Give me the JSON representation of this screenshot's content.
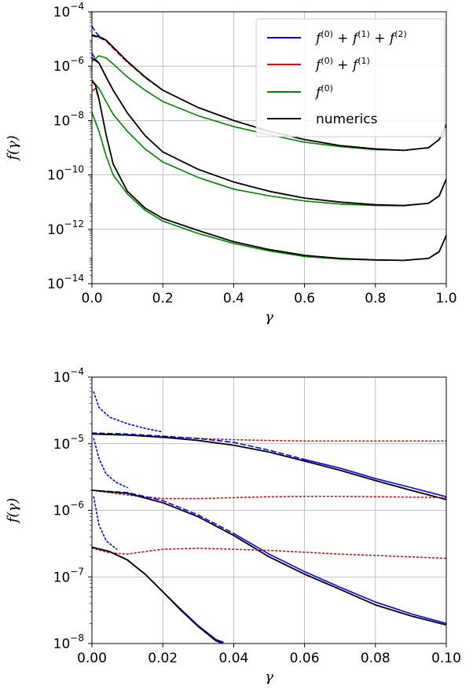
{
  "chart_data": [
    {
      "type": "line",
      "xscale": "linear",
      "yscale": "log",
      "xlim": [
        0.0,
        1.0
      ],
      "ylim": [
        1e-14,
        0.0001
      ],
      "xlabel": "γ",
      "ylabel": "f(γ)",
      "xticks": [
        "0.0",
        "0.2",
        "0.4",
        "0.6",
        "0.8",
        "1.0"
      ],
      "yticks": [
        {
          "base": "10",
          "exp": "−14",
          "value": 1e-14
        },
        {
          "base": "10",
          "exp": "−12",
          "value": 1e-12
        },
        {
          "base": "10",
          "exp": "−10",
          "value": 1e-10
        },
        {
          "base": "10",
          "exp": "−8",
          "value": 1e-08
        },
        {
          "base": "10",
          "exp": "−6",
          "value": 1e-06
        },
        {
          "base": "10",
          "exp": "−4",
          "value": 0.0001
        }
      ],
      "grid": true,
      "legend_position": "top-right",
      "legend": [
        {
          "label": "f^(0) + f^(1) + f^(2)",
          "color": "#0000ff"
        },
        {
          "label": "f^(0) + f^(1)",
          "color": "#ff0000"
        },
        {
          "label": "f^(0)",
          "color": "#008000"
        },
        {
          "label": "numerics",
          "color": "#000000"
        }
      ],
      "groups": [
        {
          "numerics": {
            "x": [
              0.0,
              0.02,
              0.04,
              0.06,
              0.1,
              0.15,
              0.2,
              0.3,
              0.4,
              0.5,
              0.6,
              0.7,
              0.8,
              0.88,
              0.95,
              0.98,
              1.0
            ],
            "y": [
              1.4e-05,
              1.2e-05,
              9e-06,
              5e-06,
              1.5e-06,
              4e-07,
              1.3e-07,
              3e-08,
              1e-08,
              4e-09,
              2e-09,
              1.2e-09,
              9e-10,
              8e-10,
              1e-09,
              2e-09,
              7e-09
            ]
          },
          "f0": {
            "x": [
              0.0,
              0.02,
              0.04,
              0.06,
              0.1,
              0.15,
              0.2,
              0.3,
              0.4,
              0.5,
              0.6,
              0.7,
              0.8,
              0.88,
              0.95,
              0.98,
              1.0
            ],
            "y": [
              1.5e-06,
              2.4e-06,
              2e-06,
              1.2e-06,
              4e-07,
              1.3e-07,
              5e-08,
              1.5e-08,
              6e-09,
              3e-09,
              1.6e-09,
              1.1e-09,
              8.5e-10,
              8e-10,
              1e-09,
              2e-09,
              7e-09
            ]
          },
          "f01": {
            "x": [
              0.0,
              0.02,
              0.04,
              0.06,
              0.1,
              0.15,
              0.2
            ],
            "y": [
              1.3e-05,
              1.15e-05,
              8.5e-06,
              4.5e-06,
              1.4e-06,
              3.8e-07,
              1.3e-07
            ]
          },
          "f012": {
            "x": [
              0.0,
              0.01,
              0.02,
              0.04
            ],
            "y": [
              3e-05,
              1.8e-05,
              1.3e-05,
              9e-06
            ]
          }
        },
        {
          "numerics": {
            "x": [
              0.0,
              0.02,
              0.04,
              0.06,
              0.1,
              0.15,
              0.2,
              0.3,
              0.4,
              0.5,
              0.6,
              0.7,
              0.8,
              0.88,
              0.95,
              0.98,
              1.0
            ],
            "y": [
              2e-06,
              1.3e-06,
              4e-07,
              1.3e-07,
              1.9e-08,
              2.8e-09,
              7e-10,
              1.6e-10,
              5.5e-11,
              2.5e-11,
              1.4e-11,
              1e-11,
              8e-12,
              7.5e-12,
              9e-12,
              1.7e-11,
              7e-11
            ]
          },
          "f0": {
            "x": [
              0.0,
              0.02,
              0.04,
              0.06,
              0.1,
              0.15,
              0.2,
              0.3,
              0.4,
              0.5,
              0.6,
              0.7,
              0.8,
              0.88,
              0.95,
              0.98,
              1.0
            ],
            "y": [
              3e-07,
              1.5e-07,
              5e-08,
              1.7e-08,
              4e-09,
              9e-10,
              3e-10,
              8e-11,
              3e-11,
              1.7e-11,
              1.1e-11,
              8.5e-12,
              7.5e-12,
              7.3e-12,
              9e-12,
              1.7e-11,
              7e-11
            ]
          },
          "f01": {
            "x": [
              0.0,
              0.01,
              0.02,
              0.04,
              0.06
            ],
            "y": [
              2e-06,
              1.7e-06,
              1.3e-06,
              4e-07,
              1.3e-07
            ]
          },
          "f012": {
            "x": [
              0.0,
              0.01,
              0.02,
              0.04
            ],
            "y": [
              3e-06,
              1.8e-06,
              1.3e-06,
              4e-07
            ]
          }
        },
        {
          "numerics": {
            "x": [
              0.0,
              0.01,
              0.02,
              0.04,
              0.06,
              0.1,
              0.15,
              0.2,
              0.3,
              0.4,
              0.5,
              0.6,
              0.7,
              0.8,
              0.88,
              0.95,
              0.98,
              1.0
            ],
            "y": [
              2.8e-07,
              2e-07,
              6e-08,
              3e-09,
              2.5e-10,
              2.5e-11,
              6e-12,
              2.5e-12,
              9e-13,
              3.5e-13,
              1.8e-13,
              1.1e-13,
              8.5e-14,
              7.5e-14,
              7.2e-14,
              8.5e-14,
              1.5e-13,
              6e-13
            ]
          },
          "f0": {
            "x": [
              0.0,
              0.02,
              0.04,
              0.06,
              0.1,
              0.15,
              0.2,
              0.3,
              0.4,
              0.5,
              0.6,
              0.7,
              0.8,
              0.88,
              0.95,
              0.98,
              1.0
            ],
            "y": [
              2e-08,
              4e-09,
              5e-10,
              1e-10,
              2e-11,
              5e-12,
              2e-12,
              7e-13,
              3e-13,
              1.6e-13,
              1e-13,
              8e-14,
              7.3e-14,
              7.2e-14,
              8.5e-14,
              1.5e-13,
              6e-13
            ]
          },
          "f01": {
            "x": [
              0.0,
              0.01,
              0.02
            ],
            "y": [
              1.2e-07,
              1.5e-07,
              6e-08
            ]
          },
          "f012": {
            "x": [
              0.0,
              0.01,
              0.02
            ],
            "y": [
              3e-07,
              2e-07,
              6e-08
            ]
          }
        }
      ]
    },
    {
      "type": "line",
      "xscale": "linear",
      "yscale": "log",
      "xlim": [
        0.0,
        0.1
      ],
      "ylim": [
        1e-08,
        0.0001
      ],
      "xlabel": "γ",
      "ylabel": "f(γ)",
      "xticks": [
        "0.00",
        "0.02",
        "0.04",
        "0.06",
        "0.08",
        "0.10"
      ],
      "yticks": [
        {
          "base": "10",
          "exp": "−8",
          "value": 1e-08
        },
        {
          "base": "10",
          "exp": "−7",
          "value": 1e-07
        },
        {
          "base": "10",
          "exp": "−6",
          "value": 1e-06
        },
        {
          "base": "10",
          "exp": "−5",
          "value": 1e-05
        },
        {
          "base": "10",
          "exp": "−4",
          "value": 0.0001
        }
      ],
      "grid": true,
      "groups": [
        {
          "numerics": {
            "x": [
              0.0,
              0.01,
              0.02,
              0.03,
              0.04,
              0.05,
              0.06,
              0.07,
              0.08,
              0.09,
              0.1
            ],
            "y": [
              1.4e-05,
              1.35e-05,
              1.25e-05,
              1.12e-05,
              9.5e-06,
              7.5e-06,
              5.5e-06,
              4e-06,
              2.8e-06,
              2e-06,
              1.45e-06
            ]
          },
          "f012_solid": {
            "x": [
              0.06,
              0.07,
              0.08,
              0.09,
              0.1
            ],
            "y": [
              5.8e-06,
              4.3e-06,
              3e-06,
              2.2e-06,
              1.6e-06
            ]
          },
          "dashed": {
            "x": [
              0.0,
              0.01,
              0.02,
              0.03,
              0.04,
              0.05,
              0.06
            ],
            "y": [
              1.45e-05,
              1.4e-05,
              1.3e-05,
              1.2e-05,
              1.05e-05,
              8e-06,
              5.8e-06
            ]
          },
          "dotted_red": {
            "x": [
              0.0,
              0.01,
              0.02,
              0.03,
              0.04,
              0.05,
              0.06,
              0.07,
              0.08,
              0.09,
              0.1
            ],
            "y": [
              1.4e-05,
              1.35e-05,
              1.28e-05,
              1.2e-05,
              1.15e-05,
              1.12e-05,
              1.1e-05,
              1.1e-05,
              1.1e-05,
              1.1e-05,
              1.1e-05
            ]
          },
          "dotted_blue": {
            "x": [
              0.0005,
              0.002,
              0.005,
              0.01,
              0.015,
              0.02
            ],
            "y": [
              6e-05,
              3.5e-05,
              2.5e-05,
              2e-05,
              1.7e-05,
              1.5e-05
            ]
          }
        },
        {
          "numerics": {
            "x": [
              0.0,
              0.01,
              0.02,
              0.03,
              0.04,
              0.05,
              0.06,
              0.07,
              0.08,
              0.09,
              0.1
            ],
            "y": [
              2e-06,
              1.8e-06,
              1.3e-06,
              8e-07,
              4.2e-07,
              2e-07,
              1.1e-07,
              6.5e-08,
              3.8e-08,
              2.6e-08,
              1.9e-08
            ]
          },
          "f012_solid": {
            "x": [
              0.04,
              0.05,
              0.06,
              0.07,
              0.08,
              0.09,
              0.1
            ],
            "y": [
              4.5e-07,
              2.2e-07,
              1.2e-07,
              7e-08,
              4.2e-08,
              2.8e-08,
              2e-08
            ]
          },
          "dashed": {
            "x": [
              0.0,
              0.01,
              0.02,
              0.03,
              0.04
            ],
            "y": [
              2e-06,
              1.85e-06,
              1.4e-06,
              8.5e-07,
              4.5e-07
            ]
          },
          "dotted_red": {
            "x": [
              0.0,
              0.01,
              0.02,
              0.03,
              0.04,
              0.05,
              0.06,
              0.07,
              0.08,
              0.09,
              0.1
            ],
            "y": [
              2e-06,
              1.7e-06,
              1.5e-06,
              1.5e-06,
              1.55e-06,
              1.6e-06,
              1.62e-06,
              1.62e-06,
              1.6e-06,
              1.58e-06,
              1.55e-06
            ]
          },
          "dotted_blue": {
            "x": [
              0.0005,
              0.002,
              0.004,
              0.007,
              0.01
            ],
            "y": [
              1.2e-05,
              6e-06,
              3.5e-06,
              2.6e-06,
              2.2e-06
            ]
          }
        },
        {
          "numerics": {
            "x": [
              0.0,
              0.005,
              0.01,
              0.015,
              0.02,
              0.025,
              0.03,
              0.035,
              0.037
            ],
            "y": [
              2.8e-07,
              2.4e-07,
              1.8e-07,
              1.1e-07,
              6e-08,
              3.2e-08,
              1.8e-08,
              1.1e-08,
              1e-08
            ]
          },
          "f012_solid": {
            "x": [
              0.0,
              0.005,
              0.01,
              0.015,
              0.02,
              0.025,
              0.03,
              0.035,
              0.037
            ],
            "y": [
              2.8e-07,
              2.4e-07,
              1.8e-07,
              1.1e-07,
              6e-08,
              3.3e-08,
              1.85e-08,
              1.15e-08,
              1.05e-08
            ]
          },
          "dashed": {
            "x": [
              0.0,
              0.005,
              0.01
            ],
            "y": [
              2.8e-07,
              2.4e-07,
              1.8e-07
            ]
          },
          "dotted_red": {
            "x": [
              0.0,
              0.005,
              0.01,
              0.015,
              0.02,
              0.03,
              0.04,
              0.05,
              0.06,
              0.07,
              0.08,
              0.09,
              0.1
            ],
            "y": [
              2.7e-07,
              2.3e-07,
              2.2e-07,
              2.4e-07,
              2.6e-07,
              2.7e-07,
              2.6e-07,
              2.5e-07,
              2.35e-07,
              2.2e-07,
              2.1e-07,
              2e-07,
              1.9e-07
            ]
          },
          "dotted_blue": {
            "x": [
              0.0005,
              0.002,
              0.004,
              0.007
            ],
            "y": [
              1.6e-06,
              6e-07,
              3.5e-07,
              2.6e-07
            ]
          }
        }
      ]
    }
  ]
}
